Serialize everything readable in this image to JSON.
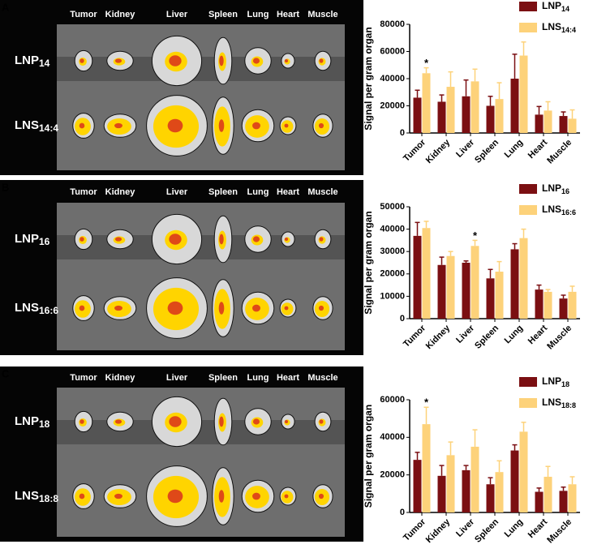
{
  "image_panels": [
    {
      "letter": "A",
      "organs": [
        "Tumor",
        "Kidney",
        "Liver",
        "Spleen",
        "Lung",
        "Heart",
        "Muscle"
      ],
      "rows": [
        "LNP14",
        "LNS14:4"
      ]
    },
    {
      "letter": "B",
      "organs": [
        "Tumor",
        "Kidney",
        "Liver",
        "Spleen",
        "Lung",
        "Heart",
        "Muscle"
      ],
      "rows": [
        "LNP16",
        "LNS16:6"
      ]
    },
    {
      "letter": "C",
      "organs": [
        "Tumor",
        "Kidney",
        "Liver",
        "Spleen",
        "Lung",
        "Heart",
        "Muscle"
      ],
      "rows": [
        "LNP18",
        "LNS18:8"
      ]
    }
  ],
  "chart_data": [
    {
      "type": "bar",
      "y_label": "Signal per gram organ",
      "categories": [
        "Tumor",
        "Kidney",
        "Liver",
        "Spleen",
        "Lung",
        "Heart",
        "Muscle"
      ],
      "series": [
        {
          "name": "LNP14",
          "color": "#7b0f12",
          "values": [
            26000,
            23000,
            27000,
            20000,
            40000,
            13500,
            12500
          ],
          "errors": [
            5500,
            5000,
            12000,
            7000,
            18000,
            6000,
            3000
          ]
        },
        {
          "name": "LNS14:4",
          "color": "#fdd27a",
          "values": [
            44000,
            34000,
            38000,
            25000,
            57000,
            16500,
            10500
          ],
          "errors": [
            4000,
            11000,
            9000,
            12000,
            10000,
            6500,
            6500
          ]
        }
      ],
      "annotations": [
        {
          "text": "*",
          "x": "Tumor",
          "series": "LNS14:4"
        }
      ],
      "ylim": [
        0,
        80000
      ],
      "yticks": [
        0,
        20000,
        40000,
        60000,
        80000
      ],
      "legend": "top-right"
    },
    {
      "type": "bar",
      "y_label": "Signal per gram organ",
      "categories": [
        "Tumor",
        "Kidney",
        "Liver",
        "Spleen",
        "Lung",
        "Heart",
        "Muscle"
      ],
      "series": [
        {
          "name": "LNP16",
          "color": "#7b0f12",
          "values": [
            37000,
            24000,
            25000,
            18000,
            31000,
            13000,
            9000
          ],
          "errors": [
            6000,
            3500,
            800,
            4000,
            2500,
            2000,
            1500
          ]
        },
        {
          "name": "LNS16:6",
          "color": "#fdd27a",
          "values": [
            40500,
            28000,
            32500,
            21000,
            36000,
            12000,
            12000
          ],
          "errors": [
            3000,
            2000,
            2500,
            4500,
            4000,
            1000,
            2500
          ]
        }
      ],
      "annotations": [
        {
          "text": "*",
          "x": "Liver",
          "series": "LNS16:6"
        }
      ],
      "ylim": [
        0,
        50000
      ],
      "yticks": [
        0,
        10000,
        20000,
        30000,
        40000,
        50000
      ],
      "legend": "top-right"
    },
    {
      "type": "bar",
      "y_label": "Signal per gram organ",
      "categories": [
        "Tumor",
        "Kidney",
        "Liver",
        "Spleen",
        "Lung",
        "Heart",
        "Muscle"
      ],
      "series": [
        {
          "name": "LNP18",
          "color": "#7b0f12",
          "values": [
            28000,
            19500,
            22500,
            15000,
            33000,
            11000,
            11500
          ],
          "errors": [
            4000,
            5500,
            2500,
            3500,
            3000,
            2000,
            2000
          ]
        },
        {
          "name": "LNS18:8",
          "color": "#fdd27a",
          "values": [
            47000,
            30500,
            35000,
            21500,
            43000,
            19000,
            15000
          ],
          "errors": [
            9000,
            7000,
            9000,
            6000,
            5000,
            5500,
            4000
          ]
        }
      ],
      "annotations": [
        {
          "text": "*",
          "x": "Tumor",
          "series": "LNS18:8"
        }
      ],
      "ylim": [
        0,
        60000
      ],
      "yticks": [
        0,
        20000,
        40000,
        60000
      ],
      "legend": "top-right"
    }
  ]
}
